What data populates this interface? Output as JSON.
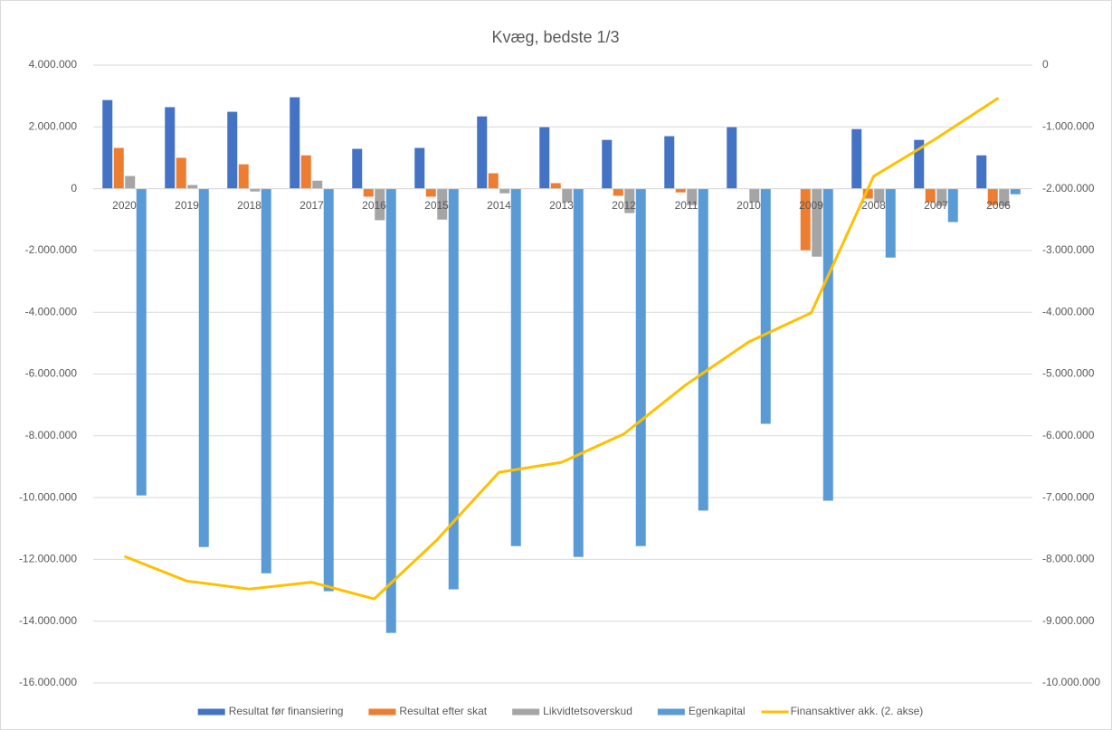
{
  "chart_data": {
    "type": "bar",
    "title": "Kvæg, bedste 1/3",
    "categories": [
      "2020",
      "2019",
      "2018",
      "2017",
      "2016",
      "2015",
      "2014",
      "2013",
      "2012",
      "2011",
      "2010",
      "2009",
      "2008",
      "2007",
      "2006"
    ],
    "series": [
      {
        "name": "Resultat før finansiering",
        "color": "#4472c4",
        "values": [
          2870000,
          2640000,
          2490000,
          2960000,
          1290000,
          1320000,
          2340000,
          1990000,
          1580000,
          1700000,
          1990000,
          0,
          1930000,
          1580000,
          1080000
        ]
      },
      {
        "name": "Resultat efter skat",
        "color": "#ed7d31",
        "values": [
          1320000,
          1000000,
          790000,
          1080000,
          -260000,
          -260000,
          500000,
          180000,
          -230000,
          -120000,
          0,
          -1990000,
          -320000,
          -440000,
          -530000
        ]
      },
      {
        "name": "Likvidtetsoverskud",
        "color": "#a5a5a5",
        "values": [
          410000,
          120000,
          -90000,
          260000,
          -1020000,
          -1000000,
          -150000,
          -440000,
          -790000,
          -530000,
          -440000,
          -2200000,
          -440000,
          -560000,
          -560000
        ]
      },
      {
        "name": "Egenkapital",
        "color": "#5b9bd5",
        "values": [
          -9930000,
          -11600000,
          -12450000,
          -13030000,
          -14380000,
          -12970000,
          -11570000,
          -11920000,
          -11570000,
          -10420000,
          -7610000,
          -10100000,
          -2230000,
          -1080000,
          -180000
        ]
      },
      {
        "name": "Finansaktiver akk. (2. akse)",
        "color": "#ffc000",
        "type": "line",
        "axis": "y2",
        "values": [
          -7950000,
          -8350000,
          -8480000,
          -8370000,
          -8640000,
          -7690000,
          -6590000,
          -6430000,
          -5970000,
          -5170000,
          -4480000,
          -4010000,
          -1800000,
          -1190000,
          -530000
        ]
      }
    ],
    "ylim": [
      -16000000,
      4000000
    ],
    "yticks": [
      {
        "value": -16000000,
        "label": "-16.000.000"
      },
      {
        "value": -14000000,
        "label": "-14.000.000"
      },
      {
        "value": -12000000,
        "label": "-12.000.000"
      },
      {
        "value": -10000000,
        "label": "-10.000.000"
      },
      {
        "value": -8000000,
        "label": "-8.000.000"
      },
      {
        "value": -6000000,
        "label": "-6.000.000"
      },
      {
        "value": -4000000,
        "label": "-4.000.000"
      },
      {
        "value": -2000000,
        "label": "-2.000.000"
      },
      0,
      {
        "value": 2000000,
        "label": "2.000.000"
      },
      {
        "value": 4000000,
        "label": "4.000.000"
      }
    ],
    "y2lim": [
      -10000000,
      0
    ],
    "y2ticks": [
      {
        "value": -10000000,
        "label": "-10.000.000"
      },
      {
        "value": -9000000,
        "label": "-9.000.000"
      },
      {
        "value": -8000000,
        "label": "-8.000.000"
      },
      {
        "value": -7000000,
        "label": "-7.000.000"
      },
      {
        "value": -6000000,
        "label": "-6.000.000"
      },
      {
        "value": -5000000,
        "label": "-5.000.000"
      },
      {
        "value": -4000000,
        "label": "-4.000.000"
      },
      {
        "value": -3000000,
        "label": "-3.000.000"
      },
      {
        "value": -2000000,
        "label": "-2.000.000"
      },
      {
        "value": -1000000,
        "label": "-1.000.000"
      },
      0
    ],
    "grid": true,
    "legend": "bottom"
  }
}
